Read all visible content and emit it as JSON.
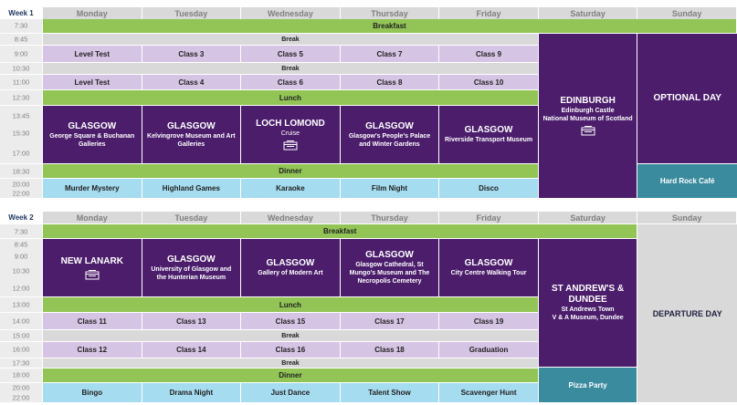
{
  "weeks": [
    {
      "label": "Week 1",
      "days": [
        "Monday",
        "Tuesday",
        "Wednesday",
        "Thursday",
        "Friday",
        "Saturday",
        "Sunday"
      ],
      "times": [
        "7:30",
        "8:45",
        "9:00",
        "10:30",
        "11:00",
        "12:30",
        "13:45",
        "15:30",
        "17:00",
        "18:30",
        "20:00",
        "22:00"
      ],
      "breakfast": "Breakfast",
      "break_1": "Break",
      "classes_1": [
        "Level Test",
        "Class 3",
        "Class 5",
        "Class 7",
        "Class 9"
      ],
      "break_2": "Break",
      "classes_2": [
        "Level Test",
        "Class 4",
        "Class 6",
        "Class 8",
        "Class 10"
      ],
      "lunch": "Lunch",
      "excursions": [
        {
          "title": "GLASGOW",
          "detail": "George Square & Buchanan Galleries"
        },
        {
          "title": "GLASGOW",
          "detail": "Kelvingrove Museum and Art Galleries"
        },
        {
          "title": "LOCH LOMOND",
          "detail": "Cruise"
        },
        {
          "title": "GLASGOW",
          "detail": "Glasgow's People's Palace and Winter Gardens"
        },
        {
          "title": "GLASGOW",
          "detail": "Riverside Transport Museum"
        }
      ],
      "dinner": "Dinner",
      "evening": [
        "Murder Mystery",
        "Highland Games",
        "Karaoke",
        "Film Night",
        "Disco"
      ],
      "saturday": {
        "title": "EDINBURGH",
        "detail": [
          "Edinburgh Castle",
          "National Museum of Scotland"
        ]
      },
      "sunday": {
        "title": "OPTIONAL DAY"
      },
      "sunday_evening": "Hard Rock Café"
    },
    {
      "label": "Week 2",
      "days": [
        "Monday",
        "Tuesday",
        "Wednesday",
        "Thursday",
        "Friday",
        "Saturday",
        "Sunday"
      ],
      "times": [
        "7:30",
        "8:45",
        "9:00",
        "10:30",
        "12:00",
        "13:00",
        "14:00",
        "15:00",
        "16:00",
        "17:30",
        "18:00",
        "20:00",
        "22:00"
      ],
      "breakfast": "Breakfast",
      "excursions": [
        {
          "title": "NEW LANARK"
        },
        {
          "title": "GLASGOW",
          "detail": "University of Glasgow and the Hunterian Museum"
        },
        {
          "title": "GLASGOW",
          "detail": "Gallery of Modern Art"
        },
        {
          "title": "GLASGOW",
          "detail": "Glasgow Cathedral, St Mungo's Museum and The Necropolis Cemetery"
        },
        {
          "title": "GLASGOW",
          "detail": "City Centre Walking Tour"
        }
      ],
      "lunch": "Lunch",
      "classes_1": [
        "Class 11",
        "Class 13",
        "Class 15",
        "Class 17",
        "Class 19"
      ],
      "break_1": "Break",
      "classes_2": [
        "Class 12",
        "Class 14",
        "Class 16",
        "Class 18",
        "Graduation"
      ],
      "break_2": "Break",
      "dinner": "Dinner",
      "evening": [
        "Bingo",
        "Drama Night",
        "Just Dance",
        "Talent Show",
        "Scavenger Hunt"
      ],
      "saturday": {
        "title": "ST ANDREW'S & DUNDEE",
        "detail": [
          "St Andrews Town",
          "V & A Museum, Dundee"
        ]
      },
      "saturday_evening": "Pizza Party",
      "sunday": {
        "title": "DEPARTURE DAY"
      }
    }
  ]
}
